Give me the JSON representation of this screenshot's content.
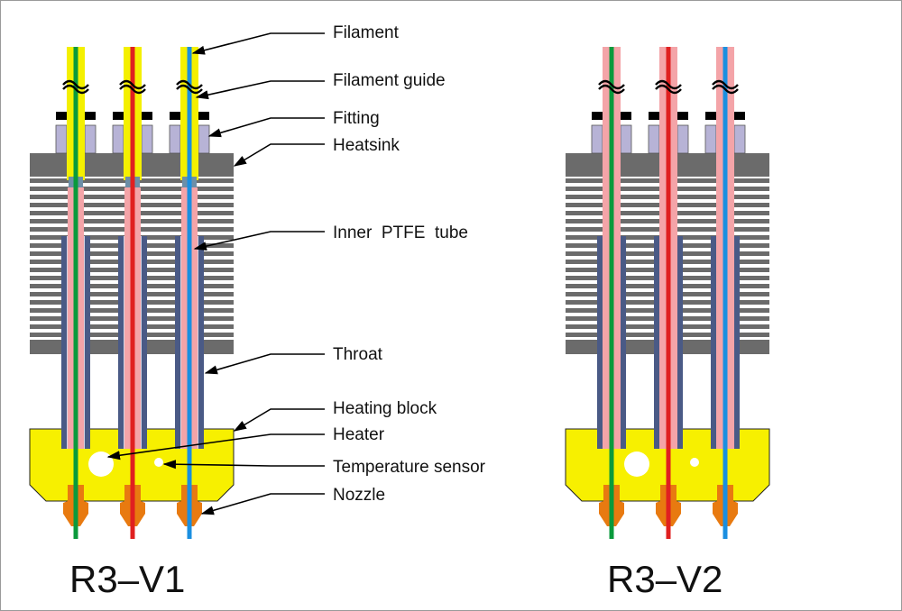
{
  "labels": {
    "filament": "Filament",
    "filament_guide": "Filament guide",
    "fitting": "Fitting",
    "heatsink": "Heatsink",
    "inner_ptfe_tube": "Inner  PTFE  tube",
    "throat": "Throat",
    "heating_block": "Heating block",
    "heater": "Heater",
    "temperature_sensor": "Temperature sensor",
    "nozzle": "Nozzle"
  },
  "captions": {
    "v1": "R3–V1",
    "v2": "R3–V2"
  },
  "colors": {
    "heatsink": "#6b6b6b",
    "heating_block": "#f7f000",
    "throat": "#4a5a86",
    "fitting": "#b7b3d6",
    "ptfe_guide_v1": "#f4f000",
    "ptfe_guide_v2": "#f4a4a8",
    "inner_ptfe": "#f4a4a8",
    "nozzle": "#e87a10",
    "filament_green": "#0a9a3c",
    "filament_red": "#e02020",
    "filament_blue": "#1a8fe0"
  }
}
